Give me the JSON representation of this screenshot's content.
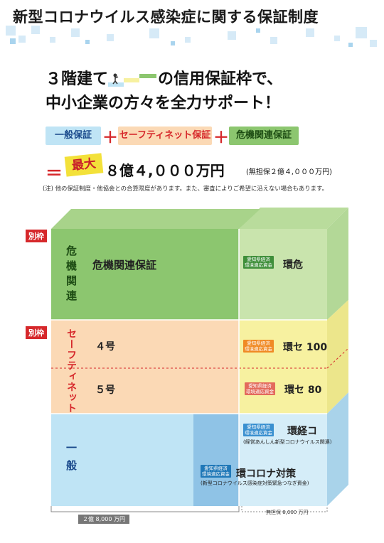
{
  "title": "新型コロナウイルス感染症に関する保証制度",
  "headline": {
    "line1_prefix": "３階建て",
    "line1_suffix": "の信用保証枠で、",
    "line2": "中小企業の方々を全力サポート！"
  },
  "formula": {
    "tags": [
      {
        "label": "一般保証",
        "color": "#bfe4f5",
        "text_color": "#1b4a8c"
      },
      {
        "label": "セーフティネット保証",
        "color": "#fbd9b5",
        "text_color": "#d6282b"
      },
      {
        "label": "危機関連保証",
        "color": "#8cc66f",
        "text_color": "#1e4d14"
      }
    ],
    "plus": "＋",
    "equals": "＝",
    "max_badge": "最大",
    "amount": "８億４,０００万円",
    "amount_sub": "(無担保２億４,０００万円)"
  },
  "note": "(注) 他の保証制度・他協会との合算限度があります。また、審査によりご希望に沿えない場合もあります。",
  "diagram": {
    "separate_label": "別枠",
    "tiers": {
      "kiki": {
        "side_label": "危機関連",
        "main_label": "危機関連保証"
      },
      "safety": {
        "side_label": "セーフティネット",
        "row4": "４号",
        "row5": "５号"
      },
      "ippan": {
        "side_label": "一般"
      }
    },
    "badge_text": "愛知県経済\n環境適応資金",
    "products": {
      "kanki": "環危",
      "kanse100": "環セ 100",
      "kanse80": "環セ 80",
      "kankeiko": "環経コ",
      "kankeiko_sub": "(経営あんしん新型コロナウイルス関連)",
      "kancorona": "環コロナ対策",
      "kancorona_sub": "(新型コロナウイルス感染症対策緊急つなぎ資金)"
    },
    "bottom_left": "２億 8,000 万円",
    "bottom_right": "無担保 8,000 万円"
  },
  "colors": {
    "green_front": "#8cc66f",
    "green_top": "#b9dc9c",
    "green_side": "#c9e4ad",
    "orange_front": "#fbd9b5",
    "yellow": "#f7f1a0",
    "blue_front": "#bfe4f5",
    "blue_mid": "#8fc3e6",
    "red": "#d6282b"
  }
}
